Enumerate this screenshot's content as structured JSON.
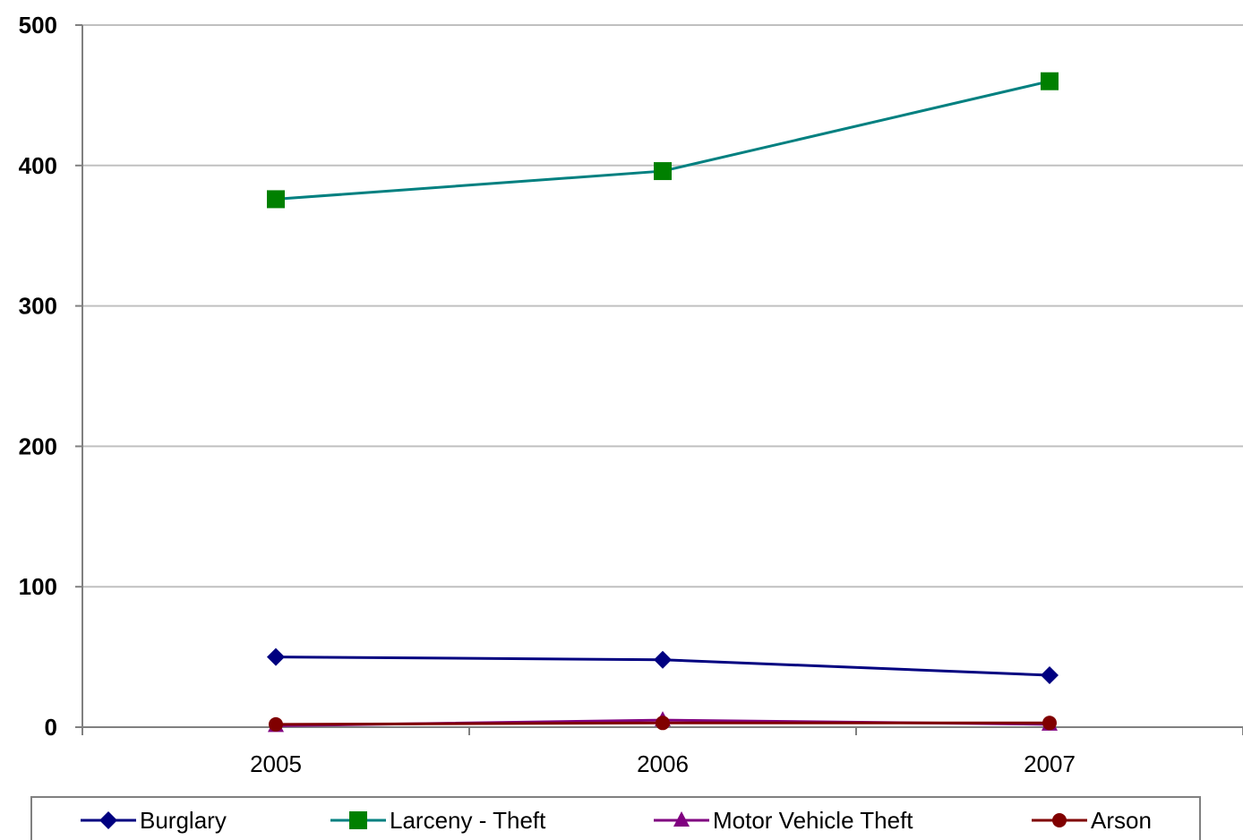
{
  "chart_data": {
    "type": "line",
    "title": "",
    "xlabel": "",
    "ylabel": "",
    "categories": [
      "2005",
      "2006",
      "2007"
    ],
    "ylim": [
      0,
      500
    ],
    "yticks": [
      "0",
      "100",
      "200",
      "300",
      "400",
      "500"
    ],
    "grid": true,
    "legend_position": "bottom",
    "series": [
      {
        "name": "Burglary",
        "values": [
          50,
          48,
          37
        ],
        "color": "#000080",
        "marker": "diamond"
      },
      {
        "name": "Larceny - Theft",
        "values": [
          376,
          396,
          460
        ],
        "color": "#008080",
        "marker_color": "#008000",
        "marker": "square"
      },
      {
        "name": "Motor Vehicle Theft",
        "values": [
          1,
          5,
          2
        ],
        "color": "#800080",
        "marker": "triangle"
      },
      {
        "name": "Arson",
        "values": [
          2,
          3,
          3
        ],
        "color": "#800000",
        "marker": "circle"
      }
    ]
  }
}
